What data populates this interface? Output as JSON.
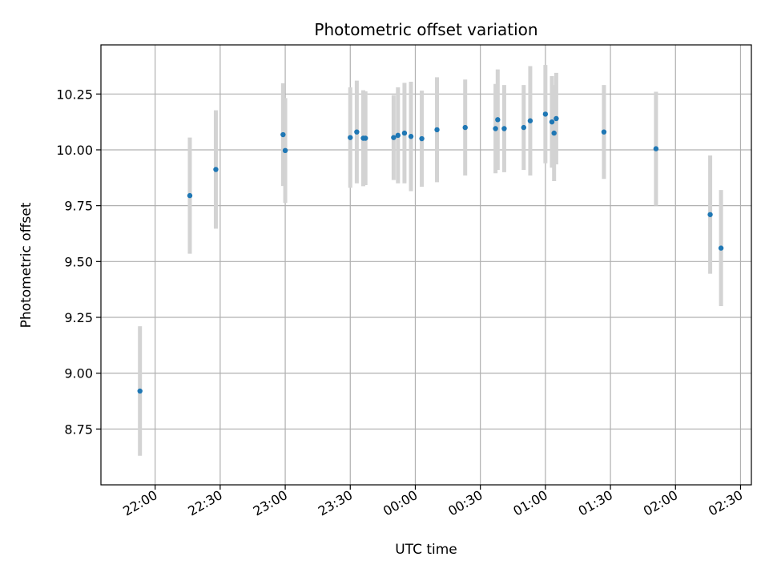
{
  "chart_data": {
    "type": "scatter",
    "title": "Photometric offset variation",
    "xlabel": "UTC time",
    "ylabel": "Photometric offset",
    "x_unit": "UTC time of day (HH:MM)",
    "xlim": [
      "21:35",
      "02:35"
    ],
    "ylim": [
      8.5,
      10.47
    ],
    "x_ticks": [
      "22:00",
      "22:30",
      "23:00",
      "23:30",
      "00:00",
      "00:30",
      "01:00",
      "01:30",
      "02:00",
      "02:30"
    ],
    "y_ticks": [
      8.75,
      9.0,
      9.25,
      9.5,
      9.75,
      10.0,
      10.25
    ],
    "y_tick_labels": [
      "8.75",
      "9.00",
      "9.25",
      "9.50",
      "9.75",
      "10.00",
      "10.25"
    ],
    "grid": true,
    "colors": {
      "points": "#1f77b4",
      "error_bars": "#d3d3d3",
      "grid": "#b0b0b0"
    },
    "points": [
      {
        "t": "21:53",
        "y": 8.92,
        "yerr": 0.29
      },
      {
        "t": "22:16",
        "y": 9.795,
        "yerr": 0.26
      },
      {
        "t": "22:28",
        "y": 9.912,
        "yerr": 0.265
      },
      {
        "t": "22:59",
        "y": 10.068,
        "yerr": 0.23
      },
      {
        "t": "23:00",
        "y": 9.997,
        "yerr": 0.235
      },
      {
        "t": "23:30",
        "y": 10.055,
        "yerr": 0.225
      },
      {
        "t": "23:33",
        "y": 10.08,
        "yerr": 0.23
      },
      {
        "t": "23:36",
        "y": 10.052,
        "yerr": 0.215
      },
      {
        "t": "23:37",
        "y": 10.052,
        "yerr": 0.21
      },
      {
        "t": "23:50",
        "y": 10.055,
        "yerr": 0.19
      },
      {
        "t": "23:52",
        "y": 10.065,
        "yerr": 0.215
      },
      {
        "t": "23:55",
        "y": 10.075,
        "yerr": 0.225
      },
      {
        "t": "23:58",
        "y": 10.06,
        "yerr": 0.245
      },
      {
        "t": "00:03",
        "y": 10.05,
        "yerr": 0.215
      },
      {
        "t": "00:10",
        "y": 10.09,
        "yerr": 0.235
      },
      {
        "t": "00:23",
        "y": 10.1,
        "yerr": 0.215
      },
      {
        "t": "00:37",
        "y": 10.095,
        "yerr": 0.2
      },
      {
        "t": "00:38",
        "y": 10.135,
        "yerr": 0.225
      },
      {
        "t": "00:41",
        "y": 10.095,
        "yerr": 0.195
      },
      {
        "t": "00:50",
        "y": 10.1,
        "yerr": 0.19
      },
      {
        "t": "00:53",
        "y": 10.13,
        "yerr": 0.245
      },
      {
        "t": "01:00",
        "y": 10.16,
        "yerr": 0.22
      },
      {
        "t": "01:03",
        "y": 10.125,
        "yerr": 0.205
      },
      {
        "t": "01:04",
        "y": 10.075,
        "yerr": 0.215
      },
      {
        "t": "01:05",
        "y": 10.14,
        "yerr": 0.205
      },
      {
        "t": "01:27",
        "y": 10.08,
        "yerr": 0.21
      },
      {
        "t": "01:51",
        "y": 10.005,
        "yerr": 0.255
      },
      {
        "t": "02:16",
        "y": 9.71,
        "yerr": 0.265
      },
      {
        "t": "02:21",
        "y": 9.56,
        "yerr": 0.26
      }
    ]
  }
}
